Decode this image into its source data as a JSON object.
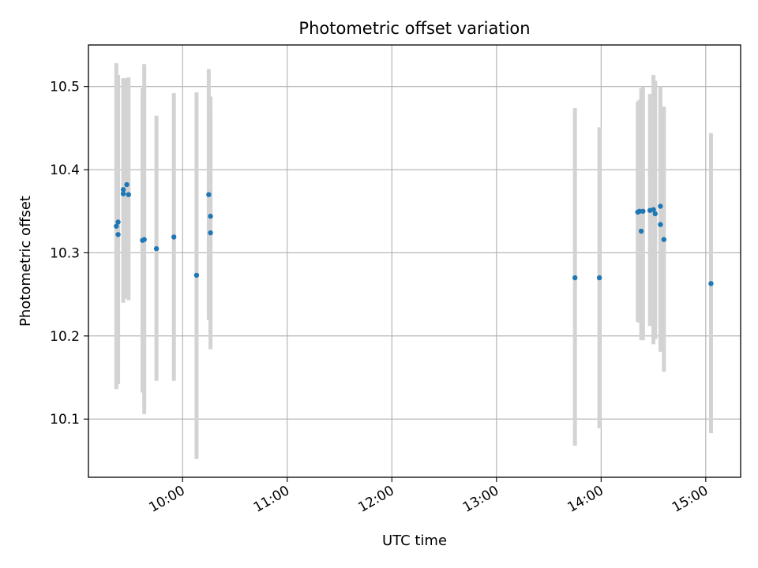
{
  "chart_data": {
    "type": "scatter",
    "title": "Photometric offset variation",
    "xlabel": "UTC time",
    "ylabel": "Photometric offset",
    "x_unit": "UTC hours",
    "xlim": [
      "09:06",
      "15:20"
    ],
    "ylim": [
      10.03,
      10.55
    ],
    "x_ticks": [
      "10:00",
      "11:00",
      "12:00",
      "13:00",
      "14:00",
      "15:00"
    ],
    "y_ticks": [
      "10.1",
      "10.2",
      "10.3",
      "10.4",
      "10.5"
    ],
    "grid": true,
    "legend": "none",
    "colors": {
      "points": "#1f77b4",
      "errorbars": "#d3d3d3",
      "grid": "#b0b0b0"
    },
    "points": [
      {
        "x": "09:22",
        "y": 10.332,
        "low": 10.136,
        "high": 10.528
      },
      {
        "x": "09:23",
        "y": 10.322,
        "low": 10.142,
        "high": 10.503
      },
      {
        "x": "09:23",
        "y": 10.337,
        "low": 10.16,
        "high": 10.514
      },
      {
        "x": "09:26",
        "y": 10.376,
        "low": 10.24,
        "high": 10.51
      },
      {
        "x": "09:26",
        "y": 10.371,
        "low": 10.245,
        "high": 10.509
      },
      {
        "x": "09:28",
        "y": 10.382,
        "low": 10.245,
        "high": 10.51
      },
      {
        "x": "09:29",
        "y": 10.37,
        "low": 10.243,
        "high": 10.511
      },
      {
        "x": "09:37",
        "y": 10.315,
        "low": 10.132,
        "high": 10.498
      },
      {
        "x": "09:38",
        "y": 10.316,
        "low": 10.106,
        "high": 10.527
      },
      {
        "x": "09:45",
        "y": 10.305,
        "low": 10.146,
        "high": 10.465
      },
      {
        "x": "09:55",
        "y": 10.319,
        "low": 10.146,
        "high": 10.492
      },
      {
        "x": "10:08",
        "y": 10.273,
        "low": 10.052,
        "high": 10.493
      },
      {
        "x": "10:15",
        "y": 10.37,
        "low": 10.219,
        "high": 10.521
      },
      {
        "x": "10:16",
        "y": 10.344,
        "low": 10.2,
        "high": 10.488
      },
      {
        "x": "10:16",
        "y": 10.324,
        "low": 10.184,
        "high": 10.464
      },
      {
        "x": "13:45",
        "y": 10.27,
        "low": 10.068,
        "high": 10.474
      },
      {
        "x": "13:59",
        "y": 10.27,
        "low": 10.089,
        "high": 10.451
      },
      {
        "x": "14:21",
        "y": 10.349,
        "low": 10.217,
        "high": 10.482
      },
      {
        "x": "14:22",
        "y": 10.35,
        "low": 10.216,
        "high": 10.484
      },
      {
        "x": "14:23",
        "y": 10.326,
        "low": 10.195,
        "high": 10.498
      },
      {
        "x": "14:24",
        "y": 10.35,
        "low": 10.195,
        "high": 10.5
      },
      {
        "x": "14:28",
        "y": 10.351,
        "low": 10.212,
        "high": 10.491
      },
      {
        "x": "14:30",
        "y": 10.352,
        "low": 10.19,
        "high": 10.514
      },
      {
        "x": "14:31",
        "y": 10.347,
        "low": 10.196,
        "high": 10.507
      },
      {
        "x": "14:34",
        "y": 10.356,
        "low": 10.181,
        "high": 10.5
      },
      {
        "x": "14:34",
        "y": 10.334,
        "low": 10.211,
        "high": 10.496
      },
      {
        "x": "14:36",
        "y": 10.316,
        "low": 10.157,
        "high": 10.476
      },
      {
        "x": "15:03",
        "y": 10.263,
        "low": 10.083,
        "high": 10.444
      }
    ]
  }
}
